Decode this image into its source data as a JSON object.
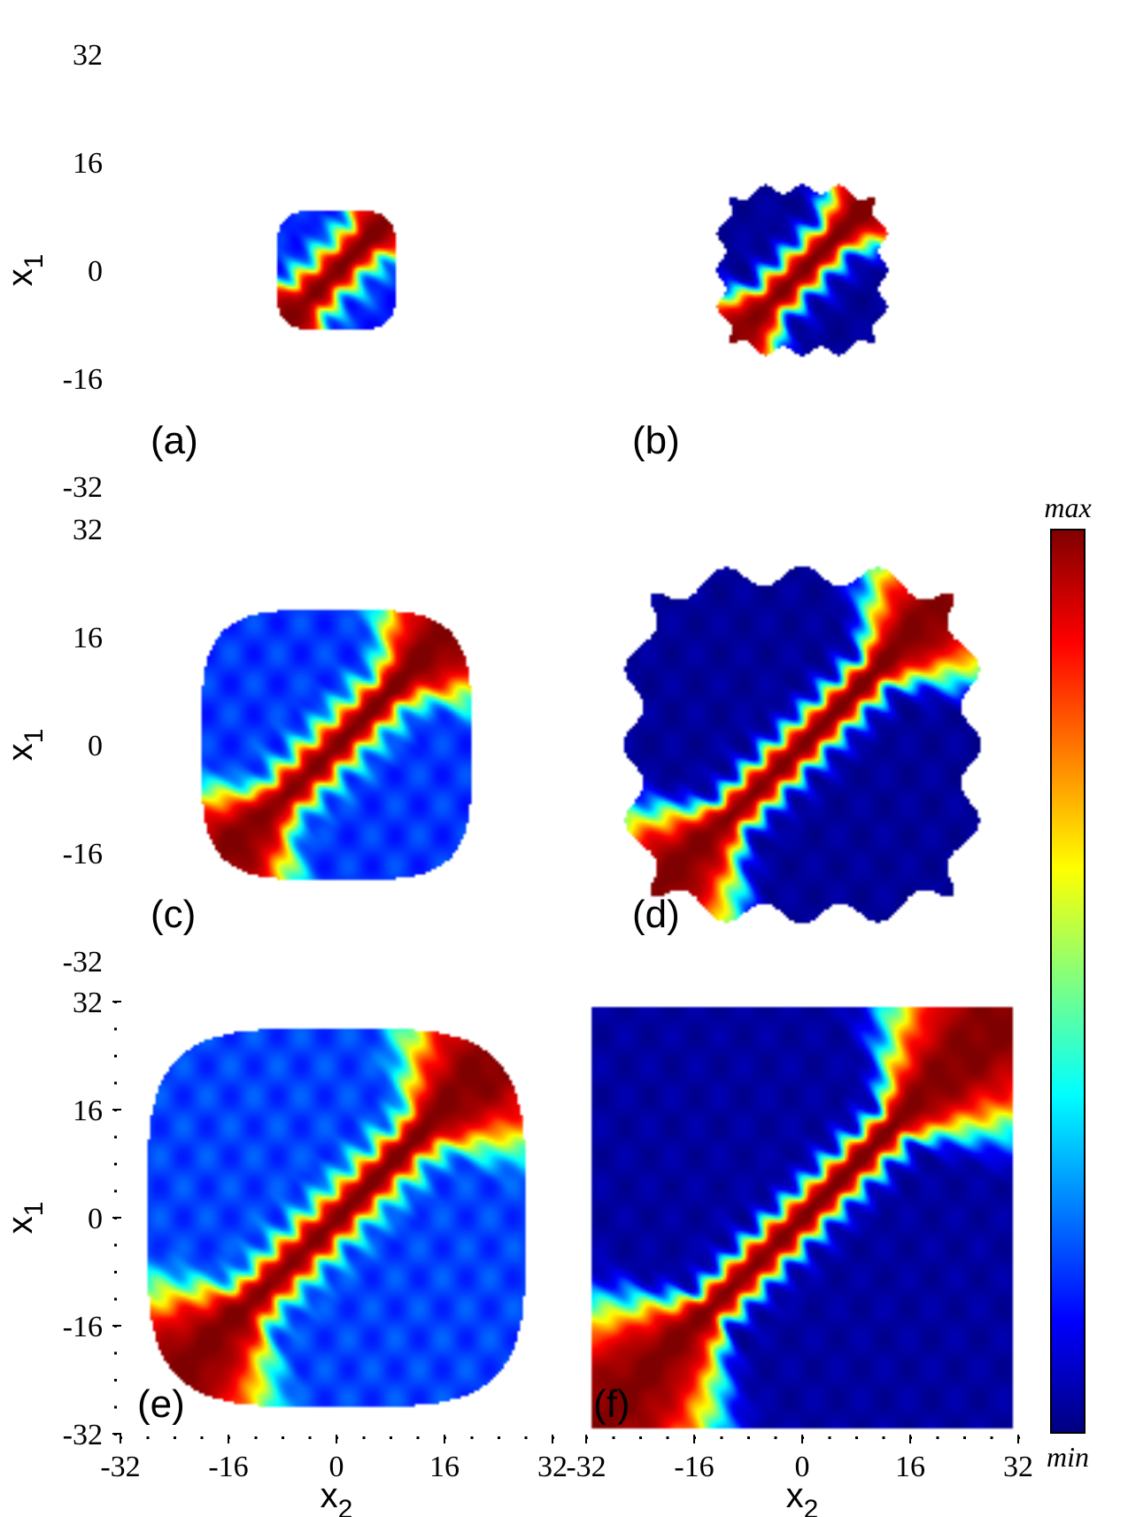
{
  "chart_data": {
    "type": "heatmap",
    "colormap": [
      "#00007f",
      "#0000ff",
      "#00ffff",
      "#ffff00",
      "#ff0000",
      "#7f0000"
    ],
    "colorbar": {
      "max_label": "max",
      "min_label": "min"
    },
    "axes": {
      "ylabel": "x",
      "ylabel_sub": "1",
      "xlabel": "x",
      "xlabel_sub": "2",
      "y_ticks": [
        "32",
        "16",
        "0",
        "-16",
        "-32"
      ],
      "x_ticks": [
        "-32",
        "-16",
        "0",
        "16",
        "32"
      ],
      "range": [
        -32,
        32
      ]
    },
    "panels": [
      {
        "label": "(a)",
        "half_width": 9,
        "style": "rounded",
        "background_level": 0.22
      },
      {
        "label": "(b)",
        "half_width": 12,
        "style": "bumpy",
        "background_level": 0.04
      },
      {
        "label": "(c)",
        "half_width": 20,
        "style": "rounded",
        "background_level": 0.24
      },
      {
        "label": "(d)",
        "half_width": 25,
        "style": "bumpy",
        "background_level": 0.04
      },
      {
        "label": "(e)",
        "half_width": 28,
        "style": "rounded",
        "background_level": 0.25
      },
      {
        "label": "(f)",
        "half_width": 31,
        "style": "square",
        "background_level": 0.05
      }
    ]
  }
}
